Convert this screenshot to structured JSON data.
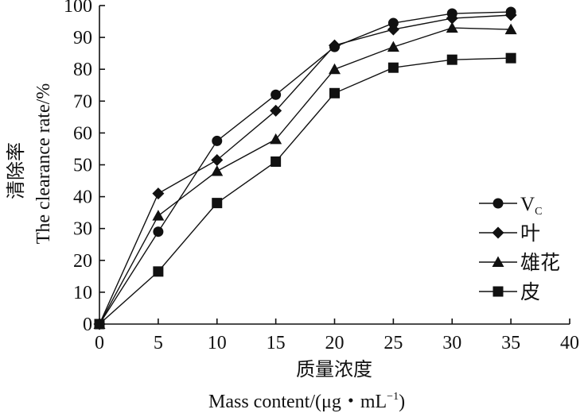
{
  "chart_data": {
    "type": "line",
    "x": [
      0,
      5,
      10,
      15,
      20,
      25,
      30,
      35
    ],
    "series": [
      {
        "name": "V",
        "subscript": "C",
        "marker": "circle",
        "values": [
          0,
          29,
          57.5,
          72,
          87,
          94.5,
          97.5,
          98
        ]
      },
      {
        "name": "叶",
        "marker": "diamond",
        "values": [
          0,
          41,
          51.5,
          67,
          87.5,
          92.5,
          96,
          97
        ]
      },
      {
        "name": "雄花",
        "marker": "triangle",
        "values": [
          0,
          34,
          48,
          58,
          80,
          87,
          93,
          92.5
        ]
      },
      {
        "name": "皮",
        "marker": "square",
        "values": [
          0,
          16.5,
          38,
          51,
          72.5,
          80.5,
          83,
          83.5
        ]
      }
    ],
    "xlim": [
      0,
      40
    ],
    "ylim": [
      0,
      100
    ],
    "xticks": [
      0,
      5,
      10,
      15,
      20,
      25,
      30,
      35,
      40
    ],
    "yticks": [
      0,
      10,
      20,
      30,
      40,
      50,
      60,
      70,
      80,
      90,
      100
    ],
    "xlabel_cn": "质量浓度",
    "xlabel_en": "Mass content/(μg・mL",
    "xlabel_en_sup": "−1",
    "xlabel_en_end": ")",
    "ylabel_cn": "清除率",
    "ylabel_en": "The clearance rate/%",
    "legend_position": "right"
  }
}
